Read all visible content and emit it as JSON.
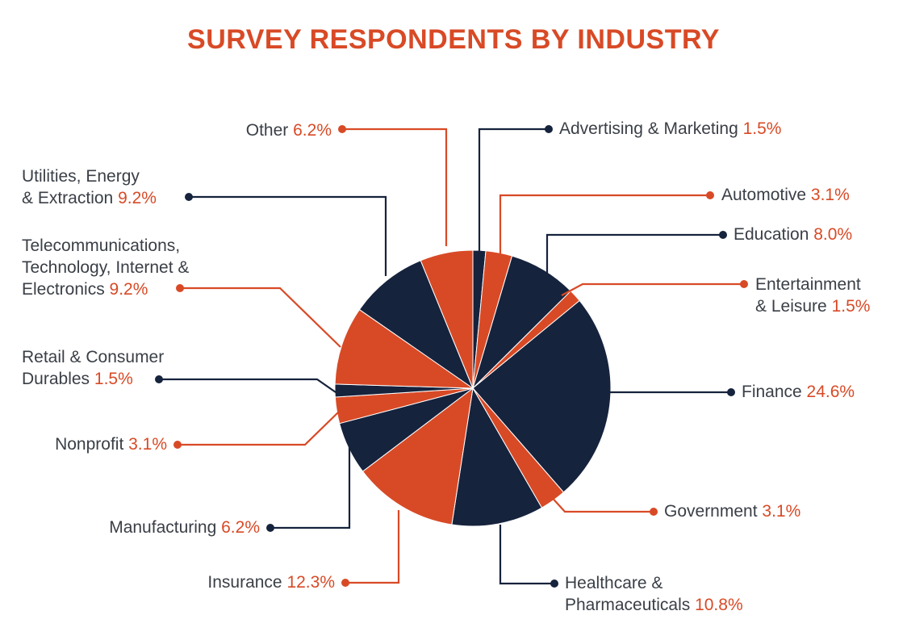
{
  "title": "SURVEY RESPONDENTS BY INDUSTRY",
  "colors": {
    "navy": "#16233d",
    "orange": "#d84a26",
    "text": "#3a3f46"
  },
  "chart_data": {
    "type": "pie",
    "title": "SURVEY RESPONDENTS BY INDUSTRY",
    "slices": [
      {
        "label": "Advertising & Marketing",
        "lines": [
          "Advertising & Marketing"
        ],
        "value": 1.5,
        "value_text": "1.5%",
        "color": "#16233d"
      },
      {
        "label": "Automotive",
        "lines": [
          "Automotive"
        ],
        "value": 3.1,
        "value_text": "3.1%",
        "color": "#d84a26"
      },
      {
        "label": "Education",
        "lines": [
          "Education"
        ],
        "value": 8.0,
        "value_text": "8.0%",
        "color": "#16233d"
      },
      {
        "label": "Entertainment & Leisure",
        "lines": [
          "Entertainment",
          "& Leisure"
        ],
        "value": 1.5,
        "value_text": "1.5%",
        "color": "#d84a26"
      },
      {
        "label": "Finance",
        "lines": [
          "Finance"
        ],
        "value": 24.6,
        "value_text": "24.6%",
        "color": "#16233d"
      },
      {
        "label": "Government",
        "lines": [
          "Government"
        ],
        "value": 3.1,
        "value_text": "3.1%",
        "color": "#d84a26"
      },
      {
        "label": "Healthcare & Pharmaceuticals",
        "lines": [
          "Healthcare &",
          "Pharmaceuticals"
        ],
        "value": 10.8,
        "value_text": "10.8%",
        "color": "#16233d"
      },
      {
        "label": "Insurance",
        "lines": [
          "Insurance"
        ],
        "value": 12.3,
        "value_text": "12.3%",
        "color": "#d84a26"
      },
      {
        "label": "Manufacturing",
        "lines": [
          "Manufacturing"
        ],
        "value": 6.2,
        "value_text": "6.2%",
        "color": "#16233d"
      },
      {
        "label": "Nonprofit",
        "lines": [
          "Nonprofit"
        ],
        "value": 3.1,
        "value_text": "3.1%",
        "color": "#d84a26"
      },
      {
        "label": "Retail & Consumer Durables",
        "lines": [
          "Retail & Consumer",
          "Durables"
        ],
        "value": 1.5,
        "value_text": "1.5%",
        "color": "#16233d"
      },
      {
        "label": "Telecommunications, Technology, Internet & Electronics",
        "lines": [
          "Telecommunications,",
          "Technology, Internet &",
          "Electronics"
        ],
        "value": 9.2,
        "value_text": "9.2%",
        "color": "#d84a26"
      },
      {
        "label": "Utilities, Energy & Extraction",
        "lines": [
          "Utilities, Energy",
          "& Extraction"
        ],
        "value": 9.2,
        "value_text": "9.2%",
        "color": "#16233d"
      },
      {
        "label": "Other",
        "lines": [
          "Other"
        ],
        "value": 6.2,
        "value_text": "6.2%",
        "color": "#d84a26"
      }
    ]
  }
}
